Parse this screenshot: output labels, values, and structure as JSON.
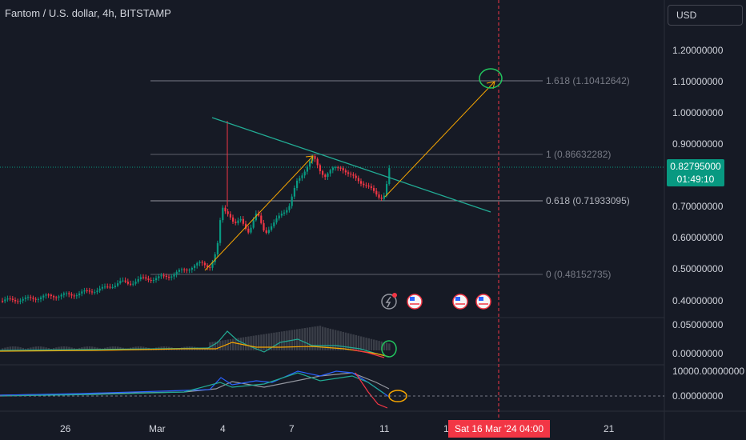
{
  "header": {
    "title": "Fantom / U.S. dollar, 4h, BITSTAMP",
    "currency": "USD"
  },
  "price_axis": {
    "labels": [
      "1.20000000",
      "1.10000000",
      "1.00000000",
      "0.90000000",
      "0.70000000",
      "0.60000000",
      "0.50000000",
      "0.40000000"
    ]
  },
  "current_price": {
    "price": "0.82795000",
    "countdown": "01:49:10"
  },
  "fib_levels": [
    {
      "label": "1.618 (1.10412642)",
      "value": 1.10412642
    },
    {
      "label": "1 (0.86632282)",
      "value": 0.86632282
    },
    {
      "label": "0.618 (0.71933095)",
      "value": 0.71933095
    },
    {
      "label": "0 (0.48152735)",
      "value": 0.48152735
    }
  ],
  "indicator1": {
    "labels": [
      "0.05000000",
      "0.00000000"
    ]
  },
  "indicator2": {
    "labels": [
      "10000.00000000",
      "0.00000000"
    ]
  },
  "time_axis": {
    "labels": [
      "26",
      "Mar",
      "4",
      "7",
      "11",
      "1",
      "21"
    ]
  },
  "cursor_date": "Sat 16 Mar '24   04:00",
  "colors": {
    "up": "#089981",
    "down": "#f23645",
    "background": "#161a25",
    "trendline": "#22ab94",
    "arrow": "#f7a600"
  }
}
